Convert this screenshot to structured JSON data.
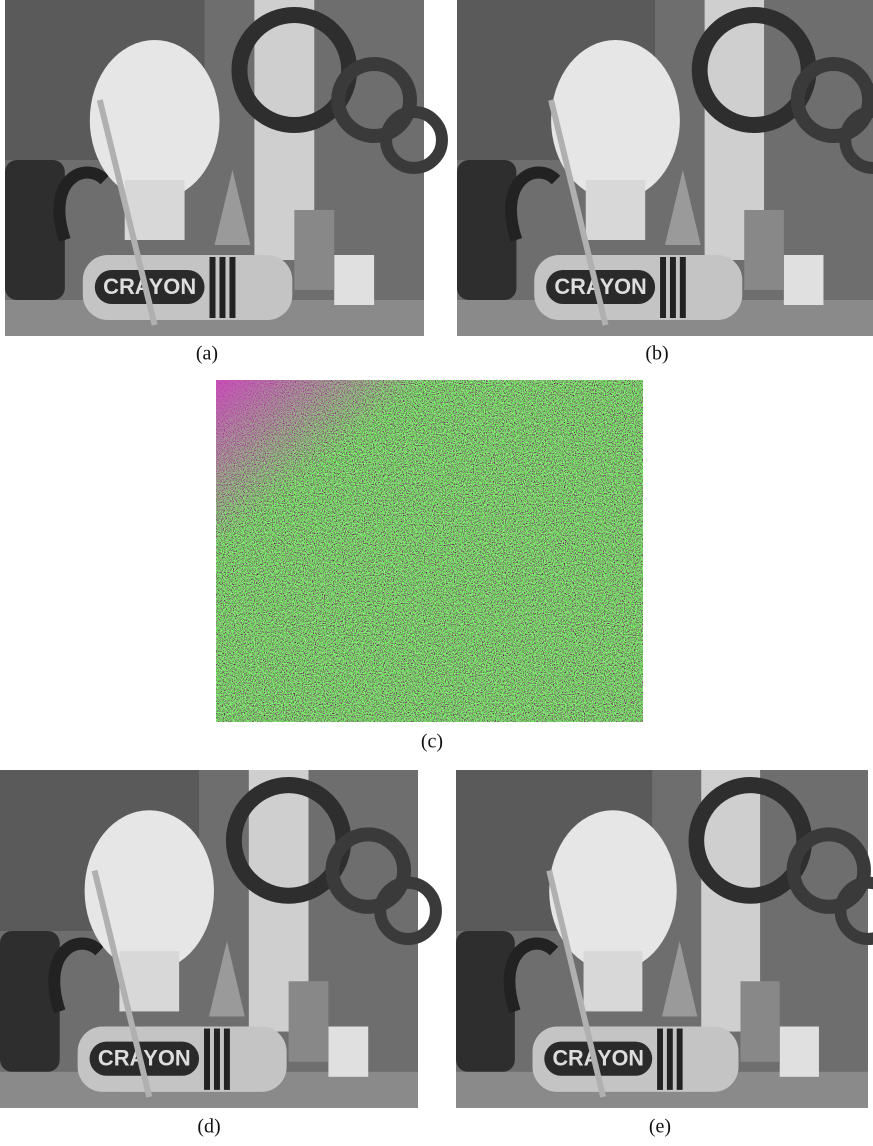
{
  "figure": {
    "panels": [
      {
        "label": "(a)"
      },
      {
        "label": "(b)"
      },
      {
        "label": "(c)"
      },
      {
        "label": "(d)"
      },
      {
        "label": "(e)"
      }
    ],
    "image_text": "CRAYON"
  }
}
